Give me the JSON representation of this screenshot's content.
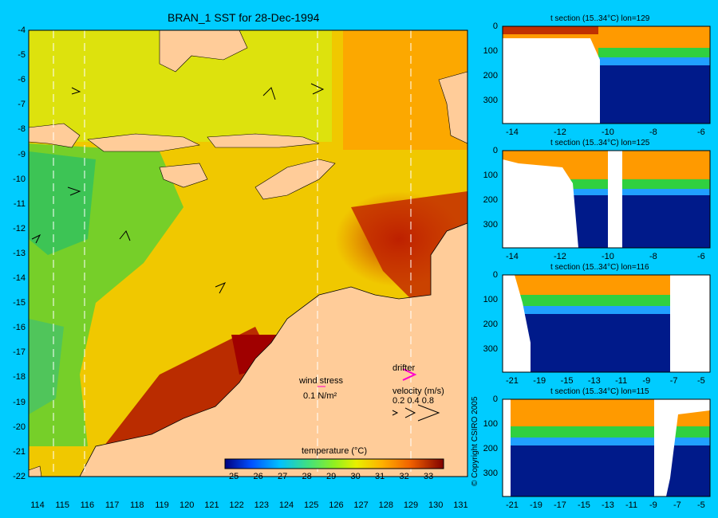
{
  "title": "BRAN_1 SST for 28-Dec-1994",
  "map": {
    "lat_ticks": [
      "-4",
      "-5",
      "-6",
      "-7",
      "-8",
      "-9",
      "-10",
      "-11",
      "-12",
      "-13",
      "-14",
      "-15",
      "-16",
      "-17",
      "-18",
      "-19",
      "-20",
      "-21",
      "-22"
    ],
    "lon_ticks": [
      "114",
      "115",
      "116",
      "117",
      "118",
      "119",
      "120",
      "121",
      "122",
      "123",
      "124",
      "125",
      "126",
      "127",
      "128",
      "129",
      "130",
      "131"
    ],
    "colorbar": {
      "label": "temperature (°C)",
      "ticks": [
        "25",
        "26",
        "27",
        "28",
        "29",
        "30",
        "31",
        "32",
        "33"
      ],
      "colors": [
        "#00007f",
        "#0000d0",
        "#0060ff",
        "#00c0ff",
        "#30e0a0",
        "#60e040",
        "#a0f020",
        "#e0f000",
        "#ffd000",
        "#ffa000",
        "#ff6000",
        "#e03000",
        "#b00000",
        "#800000"
      ]
    },
    "wind_legend": {
      "label": "wind stress",
      "value": "0.1 N/m²"
    },
    "drifter_legend": {
      "label": "drifter"
    },
    "velocity_legend": {
      "label": "velocity (m/s)",
      "values": "0.2 0.4 0.8"
    },
    "land_color": "#ffcc99"
  },
  "sections": [
    {
      "title": "t section (15..34°C) lon=129",
      "y_ticks": [
        "0",
        "100",
        "200",
        "300"
      ],
      "x_ticks": [
        "-14",
        "-12",
        "-10",
        "-8",
        "-6"
      ]
    },
    {
      "title": "t section (15..34°C) lon=125",
      "y_ticks": [
        "0",
        "100",
        "200",
        "300"
      ],
      "x_ticks": [
        "-14",
        "-12",
        "-10",
        "-8",
        "-6"
      ]
    },
    {
      "title": "t section (15..34°C) lon=116",
      "y_ticks": [
        "0",
        "100",
        "200",
        "300"
      ],
      "x_ticks": [
        "-21",
        "-19",
        "-15",
        "-13",
        "-11",
        "-9",
        "-7",
        "-5"
      ]
    },
    {
      "title": "t section (15..34°C) lon=115",
      "y_ticks": [
        "0",
        "100",
        "200",
        "300"
      ],
      "x_ticks": [
        "-21",
        "-19",
        "-17",
        "-15",
        "-13",
        "-11",
        "-9",
        "-7",
        "-5"
      ]
    }
  ],
  "copyright": "© Copyright CSIRO 2005"
}
